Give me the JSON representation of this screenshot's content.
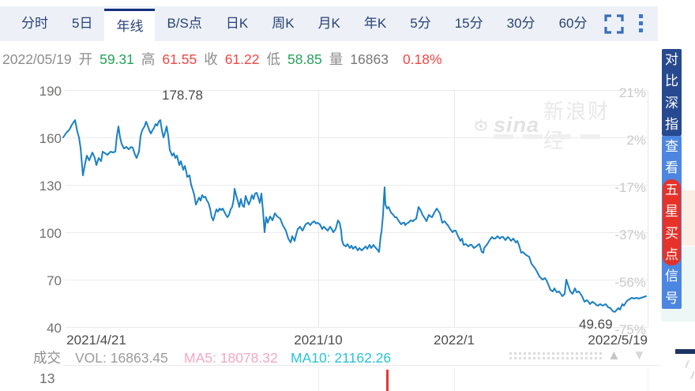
{
  "tab_bar": {
    "tabs": [
      {
        "label": "分时"
      },
      {
        "label": "5日"
      },
      {
        "label": "年线"
      },
      {
        "label": "B/S点"
      },
      {
        "label": "日K"
      },
      {
        "label": "周K"
      },
      {
        "label": "月K"
      },
      {
        "label": "年K"
      },
      {
        "label": "5分"
      },
      {
        "label": "15分"
      },
      {
        "label": "30分"
      },
      {
        "label": "60分"
      }
    ],
    "active_tab": "年线",
    "icons": [
      {
        "name": "fullscreen-icon"
      },
      {
        "name": "kebab-menu-icon"
      }
    ]
  },
  "info_bar": {
    "date": "2022/05/19",
    "fields": [
      {
        "key": "open",
        "label": "开",
        "value": "59.31",
        "color": "green"
      },
      {
        "key": "high",
        "label": "高",
        "value": "61.55",
        "color": "red"
      },
      {
        "key": "close",
        "label": "收",
        "value": "61.22",
        "color": "red"
      },
      {
        "key": "low",
        "label": "低",
        "value": "58.85",
        "color": "green"
      },
      {
        "key": "volume",
        "label": "量",
        "value": "16863",
        "color": "gray"
      }
    ],
    "change_percent": "0.18%"
  },
  "chart_data": {
    "type": "line",
    "title": "年线 (yearly line chart)",
    "y_axis_left": {
      "ticks": [
        190,
        160,
        130,
        100,
        70,
        40
      ]
    },
    "y_axis_right": {
      "ticks": [
        "21%",
        "2%",
        "-17%",
        "-37%",
        "-56%",
        "-75%"
      ]
    },
    "x_axis": {
      "ticks": [
        "2021/4/21",
        "2021/10",
        "2022/1",
        "2022/5/19"
      ]
    },
    "annotations": {
      "high": "178.78",
      "low": "49.69"
    },
    "line_color": "#1b80c4",
    "grid": true,
    "legend": "none",
    "series": {
      "name": "price",
      "points": [
        [
          80,
          160
        ],
        [
          84,
          163
        ],
        [
          88,
          165
        ],
        [
          91,
          168
        ],
        [
          95,
          171
        ],
        [
          98,
          163.5
        ],
        [
          100,
          160
        ],
        [
          102,
          153.5
        ],
        [
          105,
          136
        ],
        [
          108,
          144
        ],
        [
          110,
          148.5
        ],
        [
          113,
          145.5
        ],
        [
          117,
          150.5
        ],
        [
          120,
          147
        ],
        [
          122,
          142.5
        ],
        [
          125,
          147
        ],
        [
          128,
          145
        ],
        [
          130,
          151
        ],
        [
          133,
          150
        ],
        [
          136,
          149
        ],
        [
          140,
          151
        ],
        [
          143,
          150.5
        ],
        [
          146,
          151
        ],
        [
          148,
          161
        ],
        [
          150,
          167
        ],
        [
          152,
          160
        ],
        [
          154,
          156
        ],
        [
          157,
          153
        ],
        [
          160,
          154
        ],
        [
          163,
          152.5
        ],
        [
          166,
          154
        ],
        [
          168,
          153.5
        ],
        [
          171,
          149
        ],
        [
          173,
          147
        ],
        [
          176,
          151
        ],
        [
          178,
          161
        ],
        [
          180,
          164.5
        ],
        [
          183,
          167
        ],
        [
          185,
          170
        ],
        [
          187,
          167.5
        ],
        [
          189,
          164.5
        ],
        [
          191,
          162.5
        ],
        [
          193,
          164.5
        ],
        [
          195,
          166
        ],
        [
          197,
          168.5
        ],
        [
          199,
          167.5
        ],
        [
          201,
          170
        ],
        [
          203,
          171
        ],
        [
          205,
          164.5
        ],
        [
          207,
          160
        ],
        [
          209,
          163
        ],
        [
          211,
          167
        ],
        [
          213,
          161
        ],
        [
          215,
          152
        ],
        [
          218,
          148.5
        ],
        [
          220,
          150
        ],
        [
          222,
          147
        ],
        [
          224,
          148.5
        ],
        [
          227,
          142.5
        ],
        [
          229,
          145
        ],
        [
          232,
          139.5
        ],
        [
          234,
          142
        ],
        [
          236,
          138
        ],
        [
          237,
          135
        ],
        [
          240,
          136
        ],
        [
          242,
          130
        ],
        [
          244,
          127
        ],
        [
          246,
          123.5
        ],
        [
          248,
          117.5
        ],
        [
          250,
          119.5
        ],
        [
          252,
          122
        ],
        [
          254,
          120
        ],
        [
          256,
          123.5
        ],
        [
          258,
          122
        ],
        [
          260,
          122.5
        ],
        [
          262,
          120
        ],
        [
          264,
          118.5
        ],
        [
          266,
          115
        ],
        [
          268,
          109.5
        ],
        [
          270,
          107.5
        ],
        [
          272,
          111
        ],
        [
          274,
          114.5
        ],
        [
          276,
          113
        ],
        [
          278,
          115
        ],
        [
          280,
          114
        ],
        [
          282,
          115
        ],
        [
          284,
          113
        ],
        [
          286,
          111
        ],
        [
          288,
          109.5
        ],
        [
          290,
          111
        ],
        [
          292,
          114.5
        ],
        [
          294,
          116
        ],
        [
          296,
          121
        ],
        [
          297,
          127.5
        ],
        [
          299,
          123.5
        ],
        [
          301,
          120
        ],
        [
          303,
          116
        ],
        [
          305,
          121
        ],
        [
          307,
          117
        ],
        [
          309,
          116
        ],
        [
          311,
          123
        ],
        [
          313,
          120
        ],
        [
          315,
          117.5
        ],
        [
          317,
          120
        ],
        [
          319,
          123.5
        ],
        [
          321,
          121
        ],
        [
          323,
          124.5
        ],
        [
          325,
          125
        ],
        [
          327,
          122
        ],
        [
          329,
          118.5
        ],
        [
          331,
          124.5
        ],
        [
          333,
          113.5
        ],
        [
          335,
          100
        ],
        [
          337,
          109.5
        ],
        [
          339,
          106
        ],
        [
          342,
          110
        ],
        [
          345,
          107.5
        ],
        [
          348,
          112
        ],
        [
          351,
          110
        ],
        [
          355,
          108.5
        ],
        [
          358,
          104.5
        ],
        [
          362,
          101
        ],
        [
          365,
          96
        ],
        [
          368,
          93.5
        ],
        [
          370,
          97.5
        ],
        [
          373,
          94.5
        ],
        [
          375,
          98.5
        ],
        [
          377,
          102
        ],
        [
          380,
          103.5
        ],
        [
          383,
          101
        ],
        [
          387,
          105
        ],
        [
          390,
          106
        ],
        [
          393,
          104.5
        ],
        [
          395,
          106
        ],
        [
          398,
          107
        ],
        [
          400,
          105.5
        ],
        [
          402,
          106
        ],
        [
          405,
          105
        ],
        [
          408,
          102
        ],
        [
          410,
          103.5
        ],
        [
          412,
          102.5
        ],
        [
          415,
          101
        ],
        [
          418,
          103.5
        ],
        [
          420,
          102
        ],
        [
          422,
          100
        ],
        [
          425,
          102
        ],
        [
          428,
          107.5
        ],
        [
          430,
          106
        ],
        [
          432,
          101
        ],
        [
          433,
          95
        ],
        [
          435,
          92
        ],
        [
          438,
          91
        ],
        [
          440,
          92.5
        ],
        [
          443,
          90
        ],
        [
          445,
          91.5
        ],
        [
          447,
          89.5
        ],
        [
          450,
          91
        ],
        [
          453,
          88.5
        ],
        [
          455,
          90
        ],
        [
          458,
          88.5
        ],
        [
          460,
          89.5
        ],
        [
          463,
          91
        ],
        [
          465,
          89.5
        ],
        [
          468,
          92
        ],
        [
          470,
          90
        ],
        [
          473,
          92
        ],
        [
          475,
          90.5
        ],
        [
          477,
          89.5
        ],
        [
          480,
          87.5
        ],
        [
          482,
          97.5
        ],
        [
          483,
          100
        ],
        [
          485,
          111
        ],
        [
          486,
          121
        ],
        [
          487,
          128.5
        ],
        [
          488,
          117.5
        ],
        [
          490,
          115
        ],
        [
          492,
          116
        ],
        [
          495,
          112.5
        ],
        [
          498,
          111
        ],
        [
          500,
          109.5
        ],
        [
          502,
          109.5
        ],
        [
          505,
          107
        ],
        [
          508,
          105
        ],
        [
          510,
          106
        ],
        [
          512,
          106
        ],
        [
          513,
          104.5
        ],
        [
          515,
          105.5
        ],
        [
          517,
          106
        ],
        [
          520,
          107.5
        ],
        [
          523,
          107
        ],
        [
          525,
          108
        ],
        [
          527,
          108.5
        ],
        [
          530,
          116
        ],
        [
          533,
          113.5
        ],
        [
          535,
          111
        ],
        [
          537,
          109.5
        ],
        [
          540,
          107
        ],
        [
          543,
          111
        ],
        [
          545,
          110
        ],
        [
          547,
          109.5
        ],
        [
          550,
          112.5
        ],
        [
          553,
          115
        ],
        [
          555,
          113.5
        ],
        [
          557,
          112
        ],
        [
          560,
          106
        ],
        [
          563,
          107
        ],
        [
          565,
          105.5
        ],
        [
          567,
          104.5
        ],
        [
          570,
          102
        ],
        [
          573,
          100
        ],
        [
          575,
          101
        ],
        [
          577,
          101
        ],
        [
          580,
          97.5
        ],
        [
          583,
          94.5
        ],
        [
          585,
          96
        ],
        [
          587,
          92
        ],
        [
          590,
          92.5
        ],
        [
          593,
          91
        ],
        [
          595,
          92
        ],
        [
          597,
          92
        ],
        [
          600,
          90
        ],
        [
          603,
          91
        ],
        [
          605,
          92
        ],
        [
          607,
          92.5
        ],
        [
          610,
          87.5
        ],
        [
          612,
          87
        ],
        [
          613,
          90
        ],
        [
          617,
          92.5
        ],
        [
          620,
          95
        ],
        [
          623,
          97
        ],
        [
          625,
          96
        ],
        [
          627,
          96
        ],
        [
          630,
          97.5
        ],
        [
          633,
          96
        ],
        [
          635,
          97
        ],
        [
          637,
          97
        ],
        [
          640,
          95
        ],
        [
          643,
          97
        ],
        [
          645,
          96
        ],
        [
          647,
          94.5
        ],
        [
          650,
          96
        ],
        [
          653,
          93.5
        ],
        [
          655,
          94.5
        ],
        [
          657,
          92
        ],
        [
          660,
          87
        ],
        [
          662,
          87.5
        ],
        [
          665,
          86
        ],
        [
          668,
          85
        ],
        [
          670,
          84.5
        ],
        [
          673,
          80
        ],
        [
          677,
          77.5
        ],
        [
          680,
          75
        ],
        [
          683,
          72
        ],
        [
          687,
          70
        ],
        [
          690,
          71
        ],
        [
          692,
          69.5
        ],
        [
          695,
          66
        ],
        [
          697,
          63.5
        ],
        [
          700,
          62.5
        ],
        [
          702,
          64.5
        ],
        [
          705,
          62
        ],
        [
          708,
          62.5
        ],
        [
          710,
          61
        ],
        [
          712,
          59.5
        ],
        [
          715,
          61
        ],
        [
          717,
          70
        ],
        [
          719,
          67
        ],
        [
          722,
          62.5
        ],
        [
          725,
          61
        ],
        [
          728,
          64.5
        ],
        [
          730,
          62
        ],
        [
          733,
          62.5
        ],
        [
          735,
          61
        ],
        [
          737,
          59.5
        ],
        [
          740,
          56
        ],
        [
          743,
          57
        ],
        [
          745,
          56
        ],
        [
          747,
          54.5
        ],
        [
          750,
          56
        ],
        [
          753,
          55
        ],
        [
          755,
          54
        ],
        [
          757,
          53.5
        ],
        [
          760,
          54.5
        ],
        [
          763,
          53.5
        ],
        [
          765,
          54
        ],
        [
          767,
          54.5
        ],
        [
          770,
          52.5
        ],
        [
          773,
          52
        ],
        [
          775,
          50.5
        ],
        [
          777,
          49.7
        ],
        [
          779,
          49.7
        ],
        [
          781,
          51
        ],
        [
          783,
          52
        ],
        [
          785,
          51
        ],
        [
          788,
          54.5
        ],
        [
          790,
          53.5
        ],
        [
          793,
          56
        ],
        [
          795,
          57
        ],
        [
          797,
          57.5
        ],
        [
          800,
          58.5
        ],
        [
          803,
          58
        ],
        [
          806,
          58.5
        ],
        [
          809,
          58
        ],
        [
          812,
          58.5
        ],
        [
          815,
          59
        ],
        [
          818,
          59.5
        ]
      ]
    }
  },
  "watermark": {
    "brand": "sina",
    "name": "新浪财经"
  },
  "volume_pane": {
    "label": "成交",
    "scale_label": "13",
    "vol": {
      "label": "VOL:",
      "value": "16863.45"
    },
    "ma5": {
      "label": "MA5:",
      "value": "18078.32",
      "color": "#f4a7c3"
    },
    "ma10": {
      "label": "MA10:",
      "value": "21162.26",
      "color": "#27c5d8"
    },
    "scroll": {
      "up_glyph": "▲",
      "down_glyph": "▼"
    }
  },
  "side_panel": {
    "compare_button": "对比深指",
    "signal_button": {
      "prefix": "查看",
      "highlight": "五星买点",
      "suffix": "信号"
    }
  }
}
